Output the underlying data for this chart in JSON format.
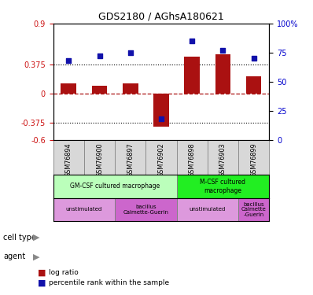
{
  "title": "GDS2180 / AGhsA180621",
  "samples": [
    "GSM76894",
    "GSM76900",
    "GSM76897",
    "GSM76902",
    "GSM76898",
    "GSM76903",
    "GSM76899"
  ],
  "log_ratios": [
    0.13,
    0.1,
    0.13,
    -0.43,
    0.47,
    0.5,
    0.22
  ],
  "percentile_ranks": [
    0.68,
    0.72,
    0.75,
    0.18,
    0.85,
    0.77,
    0.7
  ],
  "ylim_left": [
    -0.6,
    0.9
  ],
  "ylim_right": [
    0.0,
    1.0
  ],
  "yticks_left": [
    -0.6,
    -0.375,
    0,
    0.375,
    0.9
  ],
  "ytick_labels_left": [
    "-0.6",
    "-0.375",
    "0",
    "0.375",
    "0.9"
  ],
  "yticks_right": [
    0.0,
    0.25,
    0.5,
    0.75,
    1.0
  ],
  "ytick_labels_right": [
    "0",
    "25",
    "50",
    "75",
    "100%"
  ],
  "dotted_lines": [
    0.375,
    -0.375
  ],
  "dashed_line": 0,
  "bar_color": "#aa1111",
  "dot_color": "#1111aa",
  "cell_type_row": [
    {
      "label": "GM-CSF cultured macrophage",
      "span": [
        0,
        4
      ],
      "color": "#bbffbb"
    },
    {
      "label": "M-CSF cultured\nmacrophage",
      "span": [
        4,
        7
      ],
      "color": "#22ee22"
    }
  ],
  "agent_row": [
    {
      "label": "unstimulated",
      "span": [
        0,
        2
      ],
      "color": "#dd99dd"
    },
    {
      "label": "bacillus\nCalmette-Guerin",
      "span": [
        2,
        4
      ],
      "color": "#cc66cc"
    },
    {
      "label": "unstimulated",
      "span": [
        4,
        6
      ],
      "color": "#dd99dd"
    },
    {
      "label": "bacillus\nCalmette\n-Guerin",
      "span": [
        6,
        7
      ],
      "color": "#cc66cc"
    }
  ],
  "legend_bar_label": "log ratio",
  "legend_dot_label": "percentile rank within the sample"
}
